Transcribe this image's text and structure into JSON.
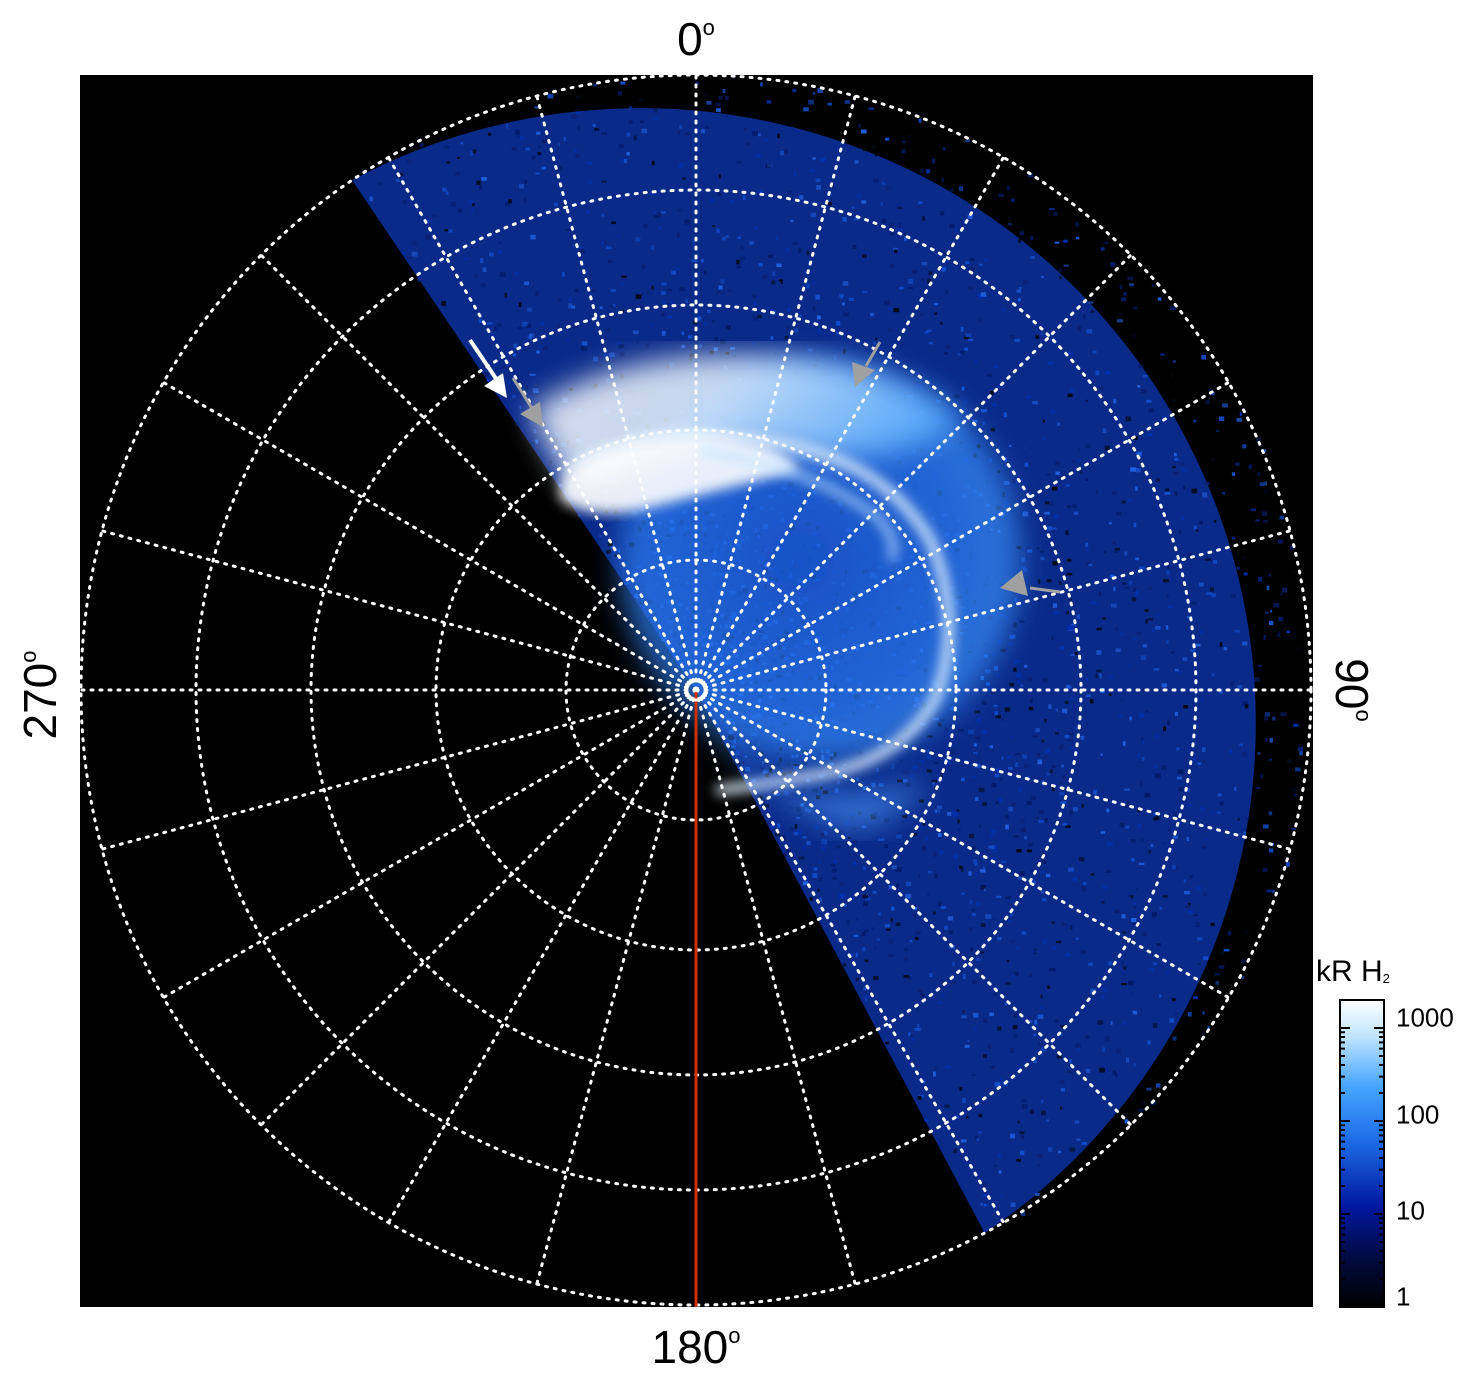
{
  "figure": {
    "type": "polar auroral projection",
    "background_color": "#000000",
    "grid_color": "#ffffff",
    "grid_style": "dotted",
    "meridian_color": "#d03000",
    "azimuth_labels": {
      "top": "0",
      "right": "90",
      "bottom": "180",
      "left": "270",
      "degree_symbol": "o"
    },
    "arrows": [
      {
        "color": "#ffffff"
      },
      {
        "color": "#a0a0a0"
      },
      {
        "color": "#a0a0a0"
      },
      {
        "color": "#a0a0a0"
      }
    ]
  },
  "colorbar": {
    "title_main": "kR H",
    "title_sub": "2",
    "scale": "log",
    "range": [
      1,
      2000
    ],
    "ticks": [
      "1",
      "10",
      "100",
      "1000"
    ],
    "colors": [
      "#000000",
      "#000a3c",
      "#0018a0",
      "#1f6fe8",
      "#46a6ff",
      "#bfe4ff",
      "#ffffff"
    ]
  }
}
